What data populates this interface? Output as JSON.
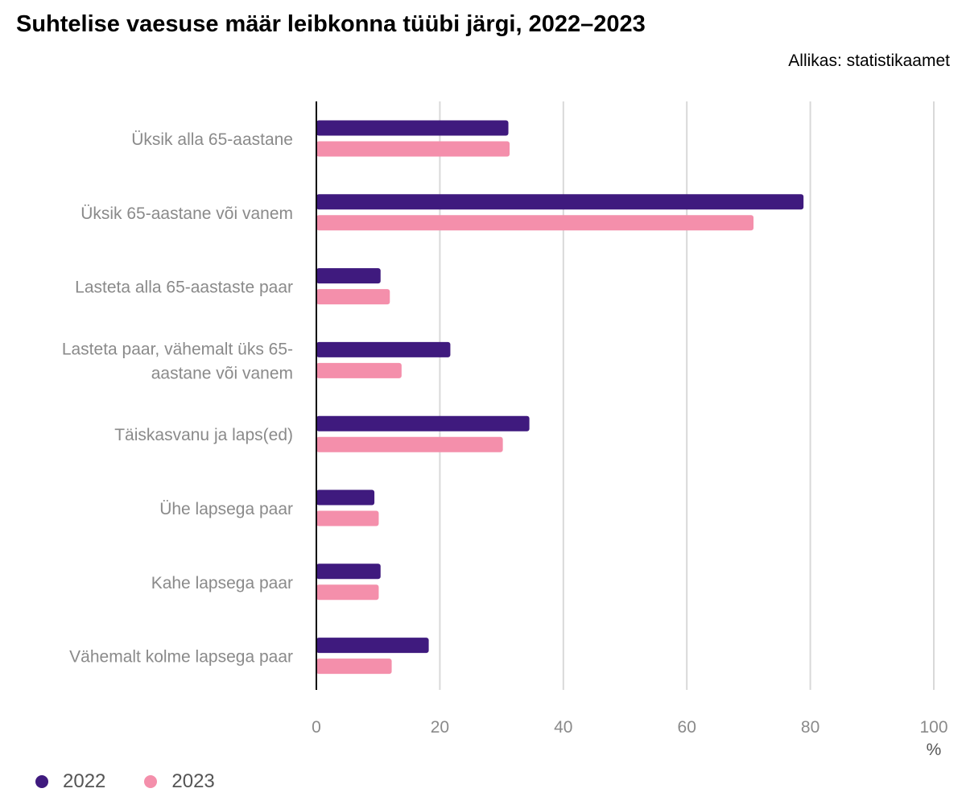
{
  "title": "Suhtelise vaesuse määr leibkonna tüübi järgi, 2022–2023",
  "source": "Allikas: statistikaamet",
  "chart_data": {
    "type": "bar",
    "orientation": "horizontal",
    "categories": [
      [
        "Üksik alla 65-aastane"
      ],
      [
        "Üksik 65-aastane või vanem"
      ],
      [
        "Lasteta alla 65-aastaste paar"
      ],
      [
        "Lasteta paar, vähemalt üks 65-",
        "aastane või vanem"
      ],
      [
        "Täiskasvanu ja laps(ed)"
      ],
      [
        "Ühe lapsega paar"
      ],
      [
        "Kahe lapsega paar"
      ],
      [
        "Vähemalt kolme lapsega paar"
      ]
    ],
    "series": [
      {
        "name": "2022",
        "color": "#3f1a7e",
        "values": [
          31.1,
          78.9,
          10.4,
          21.7,
          34.5,
          9.4,
          10.4,
          18.2
        ]
      },
      {
        "name": "2023",
        "color": "#f48fab",
        "values": [
          31.3,
          70.8,
          11.9,
          13.8,
          30.2,
          10.1,
          10.1,
          12.2
        ]
      }
    ],
    "xlim": [
      0,
      100
    ],
    "xticks": [
      "0",
      "20",
      "40",
      "60",
      "80",
      "100"
    ],
    "xunit": "%",
    "grid": true,
    "legend_position": "bottom-left"
  }
}
